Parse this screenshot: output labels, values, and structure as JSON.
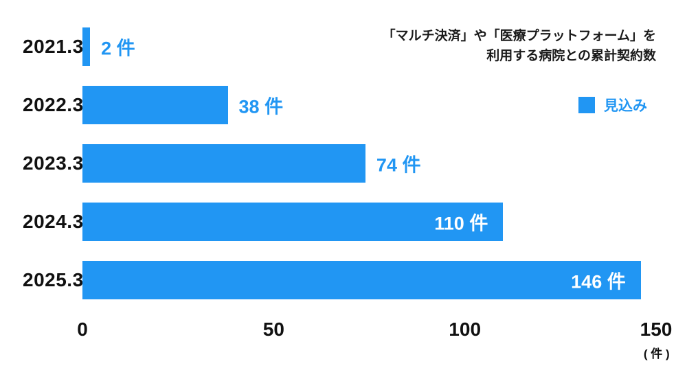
{
  "chart_data": {
    "type": "bar",
    "orientation": "horizontal",
    "title": "「マルチ決済」や「医療プラットフォーム」を利用する病院との累計契約数",
    "categories": [
      "2021.3",
      "2022.3",
      "2023.3",
      "2024.3",
      "2025.3"
    ],
    "values": [
      2,
      38,
      74,
      110,
      146
    ],
    "value_labels": [
      "2 件",
      "38 件",
      "74 件",
      "110 件",
      "146 件"
    ],
    "label_inside": [
      false,
      false,
      false,
      true,
      true
    ],
    "xlim": [
      0,
      150
    ],
    "x_ticks": [
      0,
      50,
      100,
      150
    ],
    "x_tick_labels": [
      "0",
      "50",
      "100",
      "150"
    ],
    "x_unit": "( 件 )",
    "grid": false,
    "legend_position": "right",
    "bar_color": "#2196F3",
    "legend": [
      {
        "label": "見込み",
        "color": "#2196F3"
      }
    ]
  },
  "annotation": {
    "line1": "「マルチ決済」や「医療プラットフォーム」を",
    "line2": "利用する病院との累計契約数"
  },
  "legend": {
    "label": "見込み"
  },
  "axis": {
    "ticks": [
      "0",
      "50",
      "100",
      "150"
    ],
    "unit": "( 件 )"
  }
}
